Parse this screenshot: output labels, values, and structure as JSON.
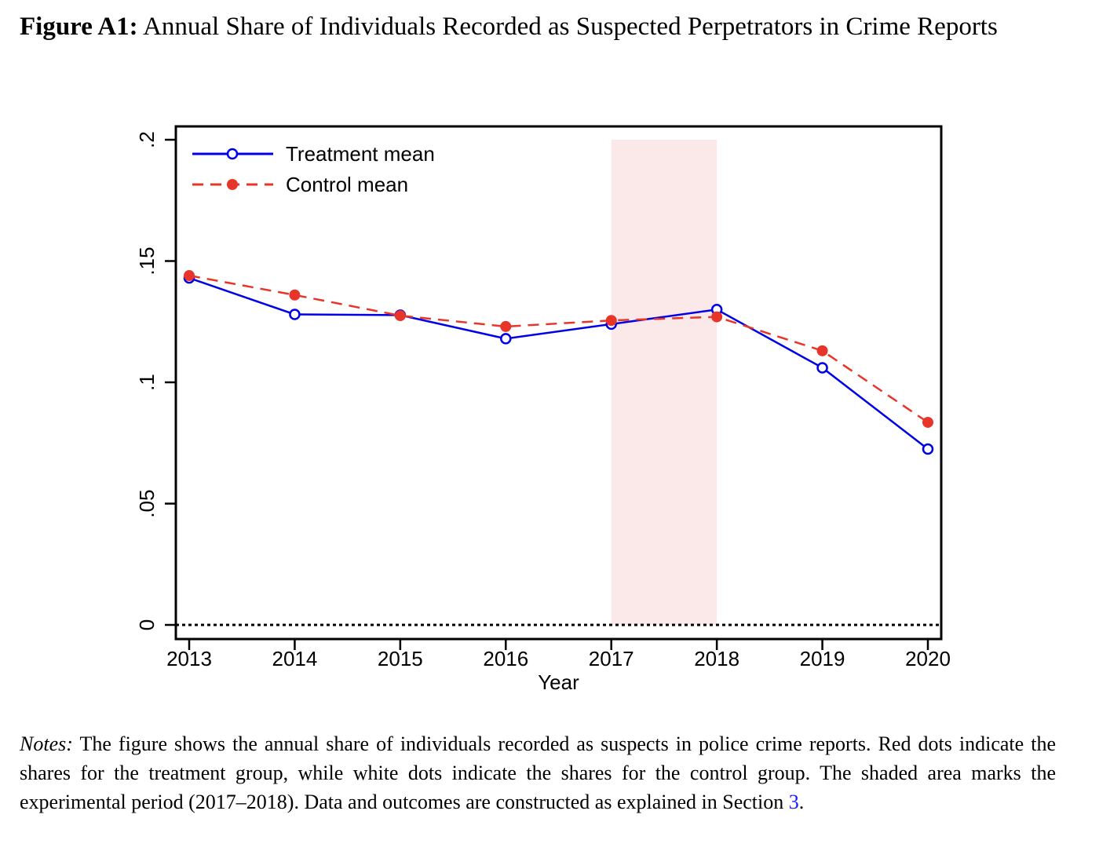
{
  "figure": {
    "label": "Figure A1:",
    "title": "Annual Share of Individuals Recorded as Suspected Perpetrators in Crime Reports"
  },
  "notes": {
    "label": "Notes:",
    "text": " The figure shows the annual share of individuals recorded as suspects in police crime reports. Red dots indicate the shares for the treatment group, while white dots indicate the shares for the control group. The shaded area marks the experimental period (2017–2018).  Data and outcomes are constructed as explained in Section ",
    "section_ref": "3",
    "end": "."
  },
  "chart_data": {
    "type": "line",
    "title": "",
    "xlabel": "Year",
    "ylabel": "",
    "x": [
      2013,
      2014,
      2015,
      2016,
      2017,
      2018,
      2019,
      2020
    ],
    "xticks": [
      "2013",
      "2014",
      "2015",
      "2016",
      "2017",
      "2018",
      "2019",
      "2020"
    ],
    "yticks": [
      0,
      0.05,
      0.1,
      0.15,
      0.2
    ],
    "ytick_labels": [
      "0",
      ".05",
      ".1",
      ".15",
      ".2"
    ],
    "xlim": [
      2012.87,
      2020.13
    ],
    "ylim": [
      -0.006,
      0.206
    ],
    "grid": false,
    "legend_position": "top-left",
    "series": [
      {
        "name": "Treatment mean",
        "color": "#0000e6",
        "line_style": "solid",
        "marker": "hollow-circle",
        "values": [
          0.143,
          0.128,
          0.1277,
          0.118,
          0.124,
          0.13,
          0.106,
          0.0725
        ]
      },
      {
        "name": "Control mean",
        "color": "#e8352a",
        "line_style": "dashed",
        "marker": "filled-circle",
        "values": [
          0.144,
          0.136,
          0.1275,
          0.123,
          0.1255,
          0.127,
          0.113,
          0.0835
        ]
      }
    ],
    "shaded_region": {
      "x_start": 2017,
      "x_end": 2018,
      "y_start": 0,
      "y_end": 0.2,
      "color": "#fbe9e9",
      "label": "experimental period"
    },
    "reference_line": {
      "y": 0,
      "style": "dotted",
      "color": "#000000"
    }
  }
}
